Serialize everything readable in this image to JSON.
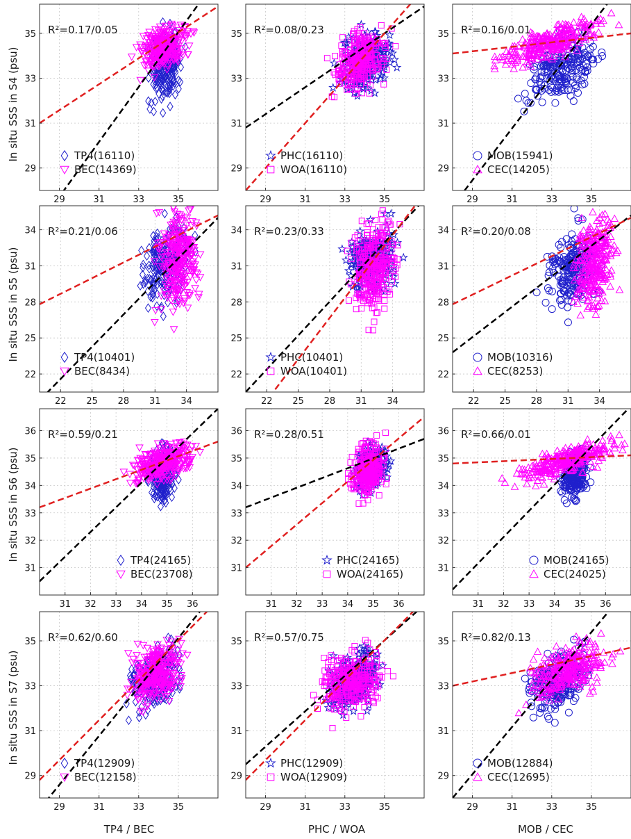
{
  "ylabels": [
    "In situ SSS in S4 (psu)",
    "In situ SSS in S5 (psu)",
    "In situ SSS in S6 (psu)",
    "In situ SSS in S7 (psu)"
  ],
  "xlabels": [
    "TP4 / BEC",
    "PHC / WOA",
    "MOB / CEC"
  ],
  "colors": {
    "series_a": "#2020cc",
    "series_b": "#ff00ff",
    "fit_a": "#000000",
    "fit_b": "#e02020"
  },
  "chart_data": [
    {
      "type": "scatter",
      "row": 0,
      "col": 0,
      "xlim": [
        28,
        37
      ],
      "ylim": [
        28,
        36.3
      ],
      "xticks": [
        29,
        31,
        33,
        35
      ],
      "yticks": [
        29,
        31,
        33,
        35
      ],
      "r2": "R²=0.17/0.05",
      "series": [
        {
          "name": "TP4(16110)",
          "marker": "diamond",
          "cx": 34.4,
          "cy": 33.5,
          "sx": 0.6,
          "sy": 1.2
        },
        {
          "name": "BEC(14369)",
          "marker": "tri-down",
          "cx": 34.3,
          "cy": 34.4,
          "sx": 0.9,
          "sy": 0.7
        }
      ],
      "fits": [
        {
          "color": "fit_a",
          "p1": [
            28,
            26.5
          ],
          "p2": [
            37,
            37.5
          ]
        },
        {
          "color": "fit_b",
          "p1": [
            28,
            31.0
          ],
          "p2": [
            37,
            36.2
          ]
        }
      ]
    },
    {
      "type": "scatter",
      "row": 0,
      "col": 1,
      "xlim": [
        28,
        37
      ],
      "ylim": [
        28,
        36.3
      ],
      "xticks": [
        29,
        31,
        33,
        35
      ],
      "yticks": [
        29,
        31,
        33,
        35
      ],
      "r2": "R²=0.08/0.23",
      "series": [
        {
          "name": "PHC(16110)",
          "marker": "star",
          "cx": 34.0,
          "cy": 33.7,
          "sx": 1.0,
          "sy": 1.0
        },
        {
          "name": "WOA(16110)",
          "marker": "square",
          "cx": 33.8,
          "cy": 33.8,
          "sx": 1.0,
          "sy": 1.0
        }
      ],
      "fits": [
        {
          "color": "fit_a",
          "p1": [
            28,
            30.8
          ],
          "p2": [
            37,
            36.2
          ]
        },
        {
          "color": "fit_b",
          "p1": [
            28,
            28.0
          ],
          "p2": [
            37,
            37.0
          ]
        }
      ]
    },
    {
      "type": "scatter",
      "row": 0,
      "col": 2,
      "xlim": [
        28,
        37
      ],
      "ylim": [
        28,
        36.3
      ],
      "xticks": [
        29,
        31,
        33,
        35
      ],
      "yticks": [
        29,
        31,
        33,
        35
      ],
      "r2": "R²=0.16/0.01",
      "series": [
        {
          "name": "MOB(15941)",
          "marker": "circle",
          "cx": 33.6,
          "cy": 33.5,
          "sx": 1.3,
          "sy": 1.0
        },
        {
          "name": "CEC(14205)",
          "marker": "triangle",
          "cx": 33.0,
          "cy": 34.6,
          "sx": 2.2,
          "sy": 0.5
        }
      ],
      "fits": [
        {
          "color": "fit_a",
          "p1": [
            28,
            27.3
          ],
          "p2": [
            37,
            37.7
          ]
        },
        {
          "color": "fit_b",
          "p1": [
            28,
            34.1
          ],
          "p2": [
            37,
            35.0
          ]
        }
      ]
    },
    {
      "type": "scatter",
      "row": 1,
      "col": 0,
      "xlim": [
        20,
        37
      ],
      "ylim": [
        20.5,
        36
      ],
      "xticks": [
        22,
        25,
        28,
        31,
        34
      ],
      "yticks": [
        22,
        25,
        28,
        31,
        34
      ],
      "r2": "R²=0.21/0.06",
      "series": [
        {
          "name": "TP4(10401)",
          "marker": "diamond",
          "cx": 32.0,
          "cy": 31.0,
          "sx": 1.7,
          "sy": 2.5
        },
        {
          "name": "BEC(8434)",
          "marker": "tri-down",
          "cx": 33.3,
          "cy": 31.5,
          "sx": 1.4,
          "sy": 3.2
        }
      ],
      "fits": [
        {
          "color": "fit_a",
          "p1": [
            20,
            19.8
          ],
          "p2": [
            37,
            35.0
          ]
        },
        {
          "color": "fit_b",
          "p1": [
            20,
            27.8
          ],
          "p2": [
            37,
            35.2
          ]
        }
      ]
    },
    {
      "type": "scatter",
      "row": 1,
      "col": 1,
      "xlim": [
        20,
        37
      ],
      "ylim": [
        20.5,
        36
      ],
      "xticks": [
        22,
        25,
        28,
        31,
        34
      ],
      "yticks": [
        22,
        25,
        28,
        31,
        34
      ],
      "r2": "R²=0.23/0.33",
      "series": [
        {
          "name": "PHC(10401)",
          "marker": "star",
          "cx": 32.0,
          "cy": 31.5,
          "sx": 1.7,
          "sy": 2.0
        },
        {
          "name": "WOA(10401)",
          "marker": "square",
          "cx": 32.3,
          "cy": 31.0,
          "sx": 1.6,
          "sy": 3.0
        }
      ],
      "fits": [
        {
          "color": "fit_a",
          "p1": [
            20,
            20.5
          ],
          "p2": [
            37,
            36.5
          ]
        },
        {
          "color": "fit_b",
          "p1": [
            20,
            17.5
          ],
          "p2": [
            37,
            37.0
          ]
        }
      ]
    },
    {
      "type": "scatter",
      "row": 1,
      "col": 2,
      "xlim": [
        20,
        37
      ],
      "ylim": [
        20.5,
        36
      ],
      "xticks": [
        22,
        25,
        28,
        31,
        34
      ],
      "yticks": [
        22,
        25,
        28,
        31,
        34
      ],
      "r2": "R²=0.20/0.08",
      "series": [
        {
          "name": "MOB(10316)",
          "marker": "circle",
          "cx": 31.5,
          "cy": 31.0,
          "sx": 1.8,
          "sy": 2.5
        },
        {
          "name": "CEC(8253)",
          "marker": "triangle",
          "cx": 33.5,
          "cy": 31.5,
          "sx": 1.5,
          "sy": 3.0
        }
      ],
      "fits": [
        {
          "color": "fit_a",
          "p1": [
            20,
            23.8
          ],
          "p2": [
            37,
            35.2
          ]
        },
        {
          "color": "fit_b",
          "p1": [
            20,
            27.8
          ],
          "p2": [
            37,
            35.0
          ]
        }
      ]
    },
    {
      "type": "scatter",
      "row": 2,
      "col": 0,
      "xlim": [
        30,
        37
      ],
      "ylim": [
        30,
        36.8
      ],
      "xticks": [
        31,
        32,
        33,
        34,
        35,
        36
      ],
      "yticks": [
        31,
        32,
        33,
        34,
        35,
        36
      ],
      "r2": "R²=0.59/0.21",
      "series": [
        {
          "name": "TP4(24165)",
          "marker": "diamond",
          "cx": 34.8,
          "cy": 34.4,
          "sx": 0.4,
          "sy": 0.8
        },
        {
          "name": "BEC(23708)",
          "marker": "tri-down",
          "cx": 34.8,
          "cy": 34.8,
          "sx": 0.9,
          "sy": 0.5
        }
      ],
      "fits": [
        {
          "color": "fit_a",
          "p1": [
            30,
            30.5
          ],
          "p2": [
            37,
            36.8
          ]
        },
        {
          "color": "fit_b",
          "p1": [
            30,
            33.2
          ],
          "p2": [
            37,
            35.6
          ]
        }
      ]
    },
    {
      "type": "scatter",
      "row": 2,
      "col": 1,
      "xlim": [
        30,
        37
      ],
      "ylim": [
        30,
        36.8
      ],
      "xticks": [
        31,
        32,
        33,
        34,
        35,
        36
      ],
      "yticks": [
        31,
        32,
        33,
        34,
        35,
        36
      ],
      "r2": "R²=0.28/0.51",
      "series": [
        {
          "name": "PHC(24165)",
          "marker": "star",
          "cx": 34.9,
          "cy": 34.6,
          "sx": 0.5,
          "sy": 0.6
        },
        {
          "name": "WOA(24165)",
          "marker": "square",
          "cx": 34.8,
          "cy": 34.6,
          "sx": 0.5,
          "sy": 0.7
        }
      ],
      "fits": [
        {
          "color": "fit_a",
          "p1": [
            30,
            33.2
          ],
          "p2": [
            37,
            35.7
          ]
        },
        {
          "color": "fit_b",
          "p1": [
            30,
            31.0
          ],
          "p2": [
            37,
            36.5
          ]
        }
      ]
    },
    {
      "type": "scatter",
      "row": 2,
      "col": 2,
      "xlim": [
        30,
        37
      ],
      "ylim": [
        30,
        36.8
      ],
      "xticks": [
        31,
        32,
        33,
        34,
        35,
        36
      ],
      "yticks": [
        31,
        32,
        33,
        34,
        35,
        36
      ],
      "r2": "R²=0.66/0.01",
      "series": [
        {
          "name": "MOB(24165)",
          "marker": "circle",
          "cx": 34.8,
          "cy": 34.3,
          "sx": 0.4,
          "sy": 0.6
        },
        {
          "name": "CEC(24025)",
          "marker": "triangle",
          "cx": 34.5,
          "cy": 34.9,
          "sx": 1.5,
          "sy": 0.4
        }
      ],
      "fits": [
        {
          "color": "fit_a",
          "p1": [
            30,
            30.2
          ],
          "p2": [
            37,
            36.9
          ]
        },
        {
          "color": "fit_b",
          "p1": [
            30,
            34.8
          ],
          "p2": [
            37,
            35.1
          ]
        }
      ]
    },
    {
      "type": "scatter",
      "row": 3,
      "col": 0,
      "xlim": [
        28,
        37
      ],
      "ylim": [
        28,
        36.3
      ],
      "xticks": [
        29,
        31,
        33,
        35
      ],
      "yticks": [
        29,
        31,
        33,
        35
      ],
      "r2": "R²=0.62/0.60",
      "series": [
        {
          "name": "TP4(12909)",
          "marker": "diamond",
          "cx": 33.8,
          "cy": 33.3,
          "sx": 1.0,
          "sy": 1.0
        },
        {
          "name": "BEC(12158)",
          "marker": "tri-down",
          "cx": 33.8,
          "cy": 33.5,
          "sx": 1.0,
          "sy": 1.0
        }
      ],
      "fits": [
        {
          "color": "fit_a",
          "p1": [
            28,
            27.5
          ],
          "p2": [
            37,
            37.3
          ]
        },
        {
          "color": "fit_b",
          "p1": [
            28,
            28.8
          ],
          "p2": [
            37,
            36.8
          ]
        }
      ]
    },
    {
      "type": "scatter",
      "row": 3,
      "col": 1,
      "xlim": [
        28,
        37
      ],
      "ylim": [
        28,
        36.3
      ],
      "xticks": [
        29,
        31,
        33,
        35
      ],
      "yticks": [
        29,
        31,
        33,
        35
      ],
      "r2": "R²=0.57/0.75",
      "series": [
        {
          "name": "PHC(12909)",
          "marker": "star",
          "cx": 33.4,
          "cy": 33.2,
          "sx": 1.0,
          "sy": 1.0
        },
        {
          "name": "WOA(12909)",
          "marker": "square",
          "cx": 33.3,
          "cy": 33.2,
          "sx": 1.2,
          "sy": 1.0
        }
      ],
      "fits": [
        {
          "color": "fit_a",
          "p1": [
            28,
            29.5
          ],
          "p2": [
            37,
            36.6
          ]
        },
        {
          "color": "fit_b",
          "p1": [
            28,
            28.8
          ],
          "p2": [
            37,
            36.8
          ]
        }
      ]
    },
    {
      "type": "scatter",
      "row": 3,
      "col": 2,
      "xlim": [
        28,
        37
      ],
      "ylim": [
        28,
        36.3
      ],
      "xticks": [
        29,
        31,
        33,
        35
      ],
      "yticks": [
        29,
        31,
        33,
        35
      ],
      "r2": "R²=0.82/0.13",
      "series": [
        {
          "name": "MOB(12884)",
          "marker": "circle",
          "cx": 33.3,
          "cy": 33.2,
          "sx": 1.2,
          "sy": 1.0
        },
        {
          "name": "CEC(12695)",
          "marker": "triangle",
          "cx": 33.8,
          "cy": 33.7,
          "sx": 1.5,
          "sy": 0.9
        }
      ],
      "fits": [
        {
          "color": "fit_a",
          "p1": [
            28,
            28.0
          ],
          "p2": [
            37,
            37.5
          ]
        },
        {
          "color": "fit_b",
          "p1": [
            28,
            33.0
          ],
          "p2": [
            37,
            34.7
          ]
        }
      ]
    }
  ]
}
